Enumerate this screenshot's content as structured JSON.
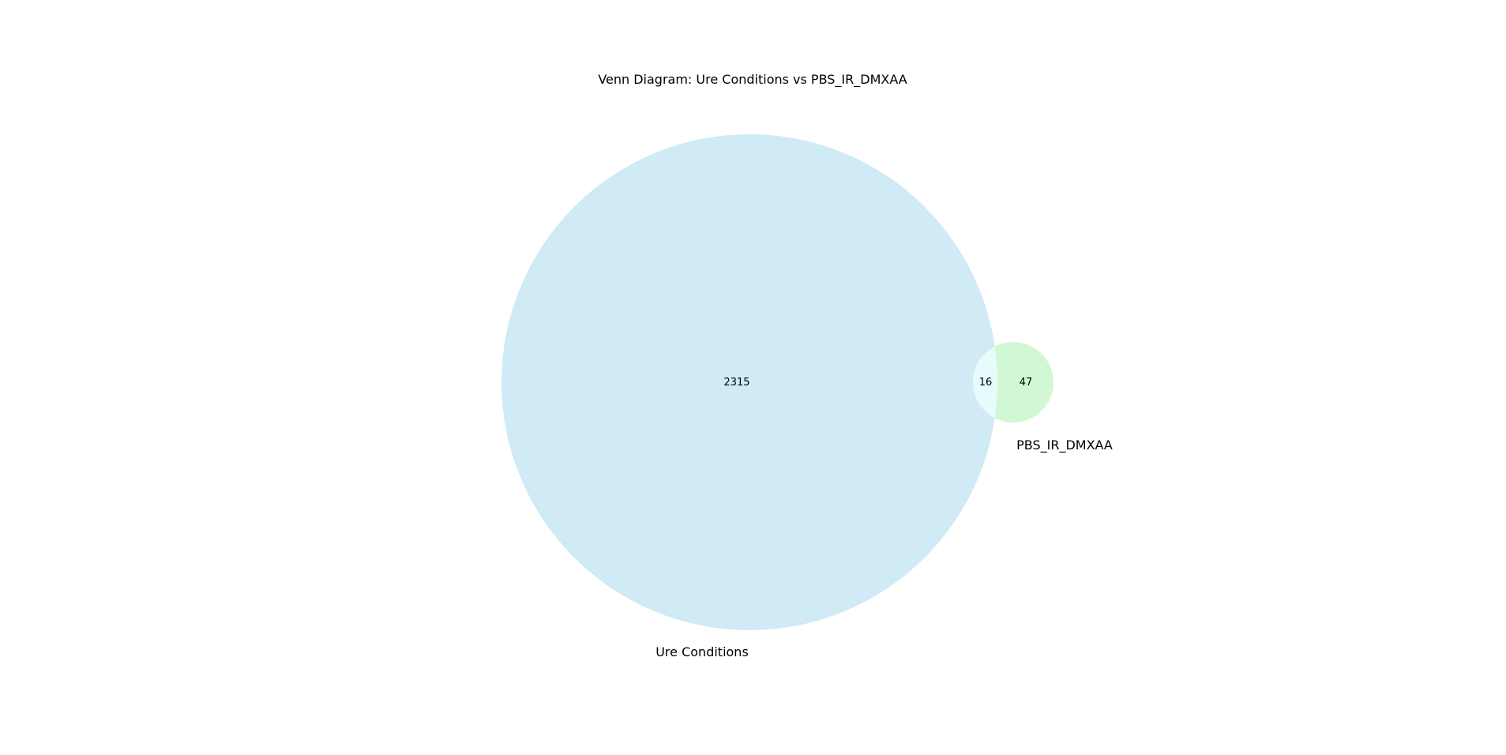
{
  "title": "Venn Diagram: Ure Conditions vs PBS_IR_DMXAA",
  "sets": [
    {
      "name": "Ure Conditions",
      "color": "#87ceeb"
    },
    {
      "name": "PBS_IR_DMXAA",
      "color": "#90ee90"
    }
  ],
  "regions": {
    "only_a": "2315",
    "overlap": "16",
    "only_b": "47"
  },
  "colors": {
    "set_a_fill": "#d0eaf6",
    "set_b_fill": "#d2f7d4",
    "overlap_fill": "#e6fcfc",
    "background": "#ffffff"
  },
  "chart_data": {
    "type": "venn",
    "title": "Venn Diagram: Ure Conditions vs PBS_IR_DMXAA",
    "set_labels": [
      "Ure Conditions",
      "PBS_IR_DMXAA"
    ],
    "subsets": {
      "10": 2315,
      "11": 16,
      "01": 47
    }
  }
}
